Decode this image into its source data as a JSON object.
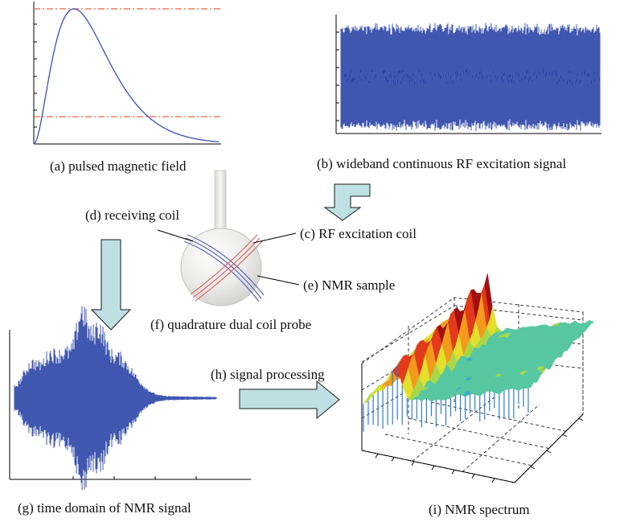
{
  "labels": {
    "a": "(a) pulsed magnetic field",
    "b": "(b) wideband continuous RF excitation signal",
    "c": "(c) RF excitation coil",
    "d": "(d) receiving coil",
    "e": "(e) NMR sample",
    "f": "(f) quadrature dual coil probe",
    "g": "(g) time domain of NMR signal",
    "h": "(h) signal processing",
    "i": "(i) NMR spectrum"
  },
  "colors": {
    "signal_blue": "#2b45a8",
    "threshold_red": "#e8643c",
    "arrow_fill": "#bfe0e2",
    "arrow_stroke": "#1a1a1a",
    "coil_blue": "#5562b8",
    "coil_red": "#e06060"
  }
}
